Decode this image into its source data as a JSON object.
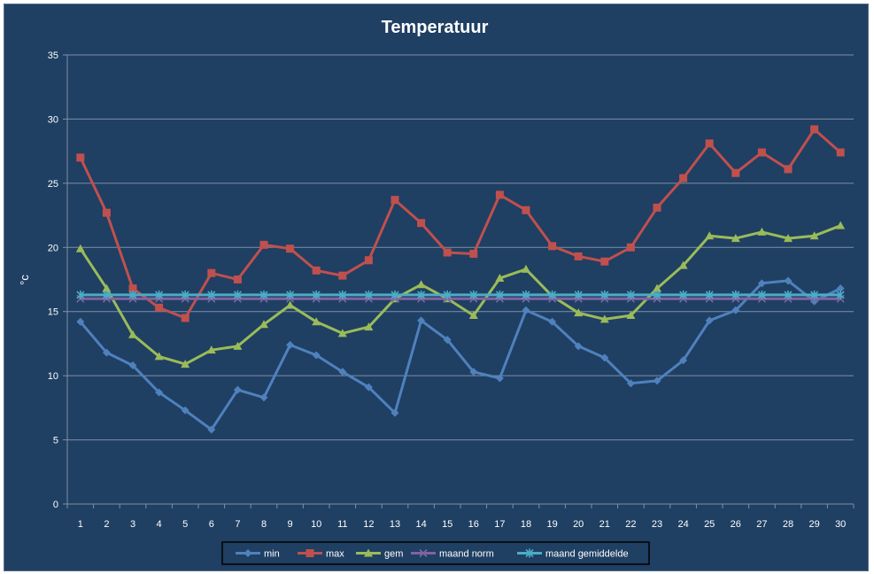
{
  "chart_data": {
    "type": "line",
    "title": "Temperatuur",
    "ylabel": "°c",
    "xlabel": "",
    "ylim": [
      0,
      35
    ],
    "yticks": [
      0,
      5,
      10,
      15,
      20,
      25,
      30,
      35
    ],
    "x": [
      1,
      2,
      3,
      4,
      5,
      6,
      7,
      8,
      9,
      10,
      11,
      12,
      13,
      14,
      15,
      16,
      17,
      18,
      19,
      20,
      21,
      22,
      23,
      24,
      25,
      26,
      27,
      28,
      29,
      30
    ],
    "grid": "horizontal",
    "legend_position": "bottom",
    "series": [
      {
        "name": "min",
        "color": "#4F81BD",
        "marker": "diamond",
        "values": [
          14.2,
          11.8,
          10.8,
          8.7,
          7.3,
          5.8,
          8.9,
          8.3,
          12.4,
          11.6,
          10.3,
          9.1,
          7.1,
          14.3,
          12.8,
          10.3,
          9.8,
          15.1,
          14.2,
          12.3,
          11.4,
          9.4,
          9.6,
          11.2,
          14.3,
          15.1,
          17.2,
          17.4,
          15.8,
          16.8
        ]
      },
      {
        "name": "max",
        "color": "#C0504D",
        "marker": "square",
        "values": [
          27.0,
          22.7,
          16.8,
          15.3,
          14.5,
          18.0,
          17.5,
          20.2,
          19.9,
          18.2,
          17.8,
          19.0,
          23.7,
          21.9,
          19.6,
          19.5,
          24.1,
          22.9,
          20.1,
          19.3,
          18.9,
          20.0,
          23.1,
          25.4,
          28.1,
          25.8,
          27.4,
          26.1,
          29.2,
          27.4
        ]
      },
      {
        "name": "gem",
        "color": "#9BBB59",
        "marker": "triangle",
        "values": [
          19.9,
          16.8,
          13.2,
          11.5,
          10.9,
          12.0,
          12.3,
          14.0,
          15.5,
          14.2,
          13.3,
          13.8,
          16.0,
          17.1,
          16.0,
          14.7,
          17.6,
          18.3,
          16.2,
          14.9,
          14.4,
          14.7,
          16.8,
          18.6,
          20.9,
          20.7,
          21.2,
          20.7,
          20.9,
          21.7
        ]
      },
      {
        "name": "maand norm",
        "color": "#8064A2",
        "marker": "x",
        "values": [
          16.0,
          16.0,
          16.0,
          16.0,
          16.0,
          16.0,
          16.0,
          16.0,
          16.0,
          16.0,
          16.0,
          16.0,
          16.0,
          16.0,
          16.0,
          16.0,
          16.0,
          16.0,
          16.0,
          16.0,
          16.0,
          16.0,
          16.0,
          16.0,
          16.0,
          16.0,
          16.0,
          16.0,
          16.0,
          16.0
        ]
      },
      {
        "name": "maand gemiddelde",
        "color": "#4BACC6",
        "marker": "asterisk",
        "values": [
          16.3,
          16.3,
          16.3,
          16.3,
          16.3,
          16.3,
          16.3,
          16.3,
          16.3,
          16.3,
          16.3,
          16.3,
          16.3,
          16.3,
          16.3,
          16.3,
          16.3,
          16.3,
          16.3,
          16.3,
          16.3,
          16.3,
          16.3,
          16.3,
          16.3,
          16.3,
          16.3,
          16.3,
          16.3,
          16.3
        ]
      }
    ]
  },
  "colors": {
    "background": "#1F3F63",
    "text": "#FFFFFF",
    "gridline": "#7F8FA6",
    "legend_border": "#000000"
  }
}
